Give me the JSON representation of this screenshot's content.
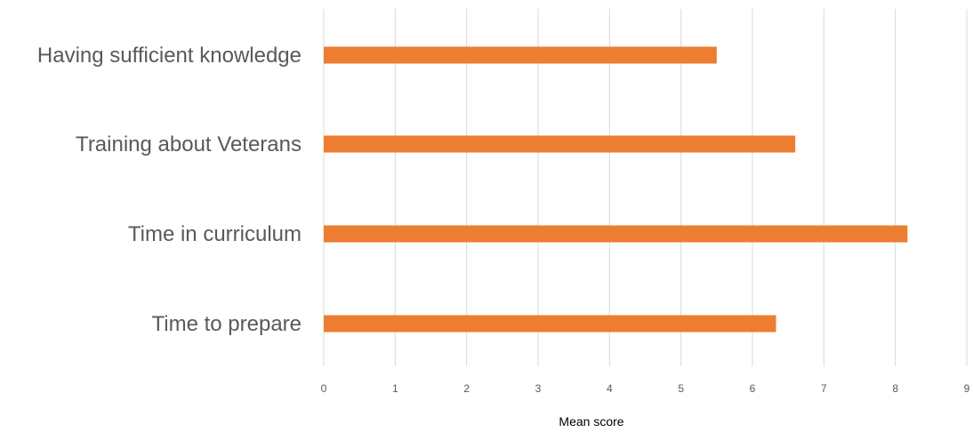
{
  "chart_data": {
    "type": "bar",
    "orientation": "horizontal",
    "categories": [
      "Having sufficient knowledge",
      "Training about Veterans",
      "Time in curriculum",
      "Time to prepare"
    ],
    "values": [
      5.5,
      6.6,
      8.17,
      6.33
    ],
    "xlabel": "Mean score",
    "ylabel": "",
    "xlim": [
      0,
      9
    ],
    "xticks": [
      "0",
      "1",
      "2",
      "3",
      "4",
      "5",
      "6",
      "7",
      "8",
      "9"
    ],
    "grid": true,
    "legend": "none",
    "colors": {
      "bar": "#ED7D31",
      "grid": "#D9D9D9",
      "category_text": "#595959",
      "tick_text": "#595959"
    }
  }
}
